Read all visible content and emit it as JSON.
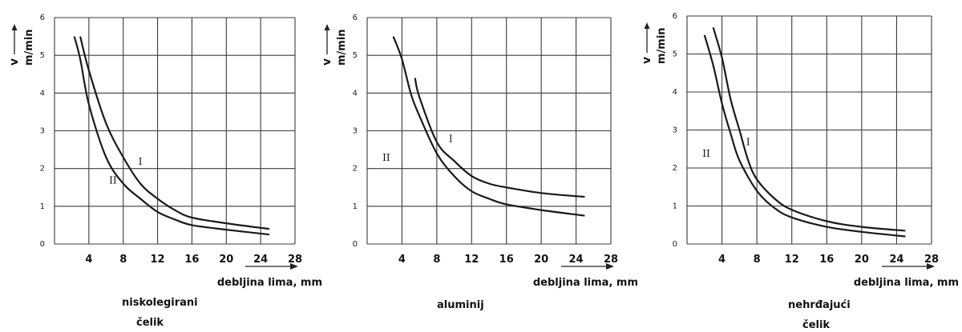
{
  "chart_data": [
    {
      "type": "line",
      "title": "",
      "ylabel": "v",
      "yunit": "m/min",
      "xlabel": "debljina lima, mm",
      "material": [
        "niskolegirani",
        "čelik"
      ],
      "xlim": [
        0,
        26
      ],
      "ylim": [
        0,
        6
      ],
      "x_ticks": [
        "4",
        "8",
        "12",
        "16",
        "20",
        "24",
        "28"
      ],
      "y_ticks": [
        "0",
        "1",
        "2",
        "3",
        "4",
        "5",
        "6"
      ],
      "series": [
        {
          "name": "I",
          "x": [
            3,
            4,
            6,
            8,
            10,
            12,
            14,
            16,
            20,
            25
          ],
          "y": [
            5.5,
            4.6,
            3.2,
            2.3,
            1.6,
            1.2,
            0.9,
            0.7,
            0.55,
            0.4
          ]
        },
        {
          "name": "II",
          "x": [
            2.3,
            3,
            4,
            6,
            8,
            10,
            12,
            14,
            16,
            20,
            25
          ],
          "y": [
            5.5,
            4.9,
            3.7,
            2.3,
            1.6,
            1.2,
            0.85,
            0.65,
            0.5,
            0.38,
            0.25
          ]
        }
      ],
      "series_label_pos": [
        {
          "x": 10,
          "y": 2.1
        },
        {
          "x": 6.8,
          "y": 1.6
        }
      ]
    },
    {
      "type": "line",
      "title": "",
      "ylabel": "v",
      "yunit": "m/min",
      "xlabel": "debljina lima, mm",
      "material": [
        "aluminij"
      ],
      "xlim": [
        0,
        26
      ],
      "ylim": [
        0,
        6
      ],
      "x_ticks": [
        "4",
        "8",
        "12",
        "16",
        "20",
        "24",
        "28"
      ],
      "y_ticks": [
        "0",
        "1",
        "2",
        "3",
        "4",
        "5",
        "6"
      ],
      "series": [
        {
          "name": "I",
          "x": [
            5.5,
            6,
            8,
            10,
            12,
            14,
            16,
            20,
            25
          ],
          "y": [
            4.4,
            3.9,
            2.7,
            2.2,
            1.8,
            1.6,
            1.5,
            1.35,
            1.25
          ]
        },
        {
          "name": "II",
          "x": [
            3,
            4,
            5,
            6,
            8,
            10,
            12,
            14,
            16,
            20,
            25
          ],
          "y": [
            5.5,
            4.9,
            4.0,
            3.4,
            2.4,
            1.8,
            1.4,
            1.2,
            1.05,
            0.9,
            0.75
          ]
        }
      ],
      "series_label_pos": [
        {
          "x": 9.6,
          "y": 2.7
        },
        {
          "x": 2.2,
          "y": 2.2
        }
      ]
    },
    {
      "type": "line",
      "title": "",
      "ylabel": "v",
      "yunit": "m/min",
      "xlabel": "debljina lima, mm",
      "material": [
        "nehrđajući",
        "čelik"
      ],
      "xlim": [
        0,
        26
      ],
      "ylim": [
        0,
        6
      ],
      "x_ticks": [
        "4",
        "8",
        "12",
        "16",
        "20",
        "24",
        "28"
      ],
      "y_ticks": [
        "0",
        "1",
        "2",
        "3",
        "4",
        "5",
        "6"
      ],
      "series": [
        {
          "name": "I",
          "x": [
            3,
            4,
            5,
            6,
            7,
            8,
            10,
            12,
            16,
            20,
            25
          ],
          "y": [
            5.7,
            4.9,
            3.8,
            3.0,
            2.2,
            1.7,
            1.2,
            0.9,
            0.6,
            0.45,
            0.35
          ]
        },
        {
          "name": "II",
          "x": [
            2,
            3,
            4,
            5,
            6,
            8,
            10,
            12,
            16,
            20,
            25
          ],
          "y": [
            5.5,
            4.7,
            3.7,
            2.9,
            2.2,
            1.4,
            0.95,
            0.7,
            0.45,
            0.32,
            0.2
          ]
        }
      ],
      "series_label_pos": [
        {
          "x": 7.0,
          "y": 2.6
        },
        {
          "x": 2.2,
          "y": 2.3
        }
      ]
    }
  ]
}
